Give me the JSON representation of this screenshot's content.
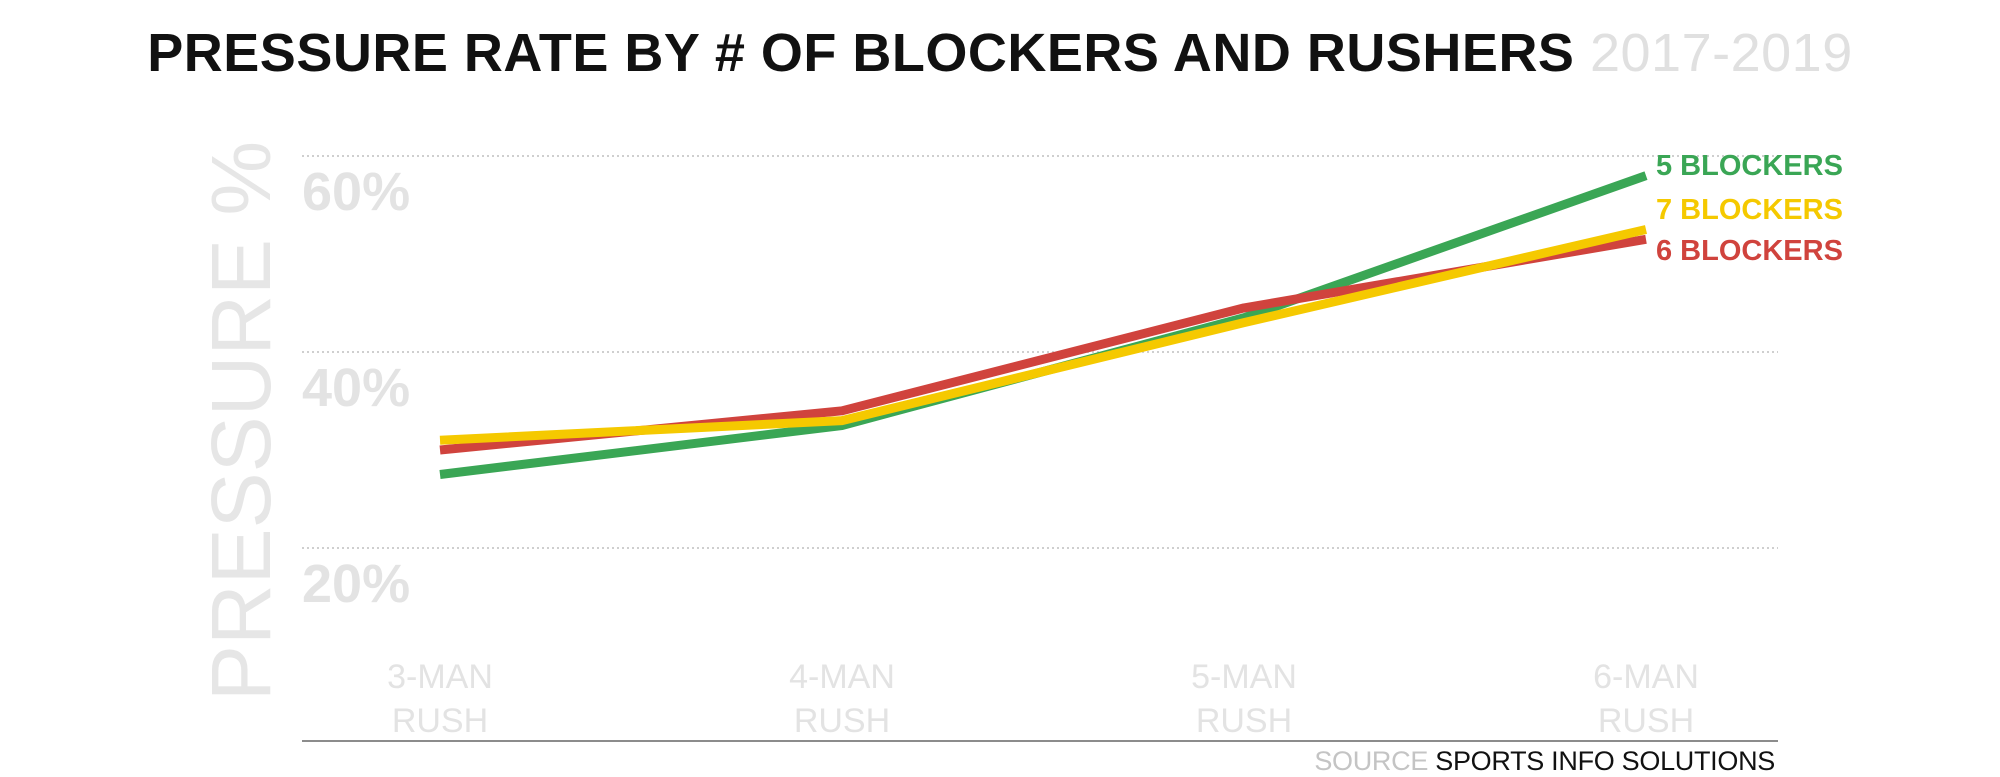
{
  "title": {
    "main": "PRESSURE RATE BY # OF BLOCKERS AND RUSHERS",
    "years": "2017-2019"
  },
  "source": {
    "label": "SOURCE",
    "name": "SPORTS INFO SOLUTIONS"
  },
  "chart_data": {
    "type": "line",
    "title": "PRESSURE RATE BY # OF BLOCKERS AND RUSHERS",
    "subtitle": "2017-2019",
    "ylabel": "PRESSURE %",
    "xlabel": "",
    "categories": [
      "3-MAN RUSH",
      "4-MAN RUSH",
      "5-MAN RUSH",
      "6-MAN RUSH"
    ],
    "category_lines": [
      [
        "3-MAN",
        "RUSH"
      ],
      [
        "4-MAN",
        "RUSH"
      ],
      [
        "5-MAN",
        "RUSH"
      ],
      [
        "6-MAN",
        "RUSH"
      ]
    ],
    "ylim": [
      10,
      60
    ],
    "yticks": [
      20,
      40,
      60
    ],
    "ytick_labels": [
      "20%",
      "40%",
      "60%"
    ],
    "grid": true,
    "legend": "right-end labels",
    "series": [
      {
        "name": "5 BLOCKERS",
        "color": "#3aa655",
        "values": [
          27.5,
          32.5,
          43.5,
          58
        ]
      },
      {
        "name": "7 BLOCKERS",
        "color": "#f5c900",
        "values": [
          31,
          33,
          43,
          52.5
        ]
      },
      {
        "name": "6 BLOCKERS",
        "color": "#d0433d",
        "values": [
          30,
          34,
          44.5,
          51.5
        ]
      }
    ],
    "draw_order": [
      0,
      2,
      1
    ]
  }
}
